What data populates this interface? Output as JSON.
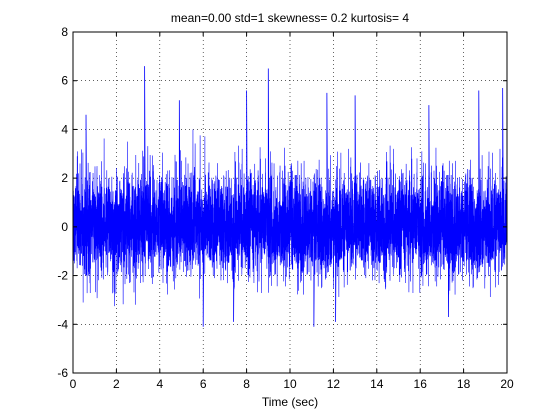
{
  "chart_data": {
    "type": "line",
    "title": "mean=0.00  std=1  skewness= 0.2  kurtosis=   4",
    "xlabel": "Time (sec)",
    "ylabel": "",
    "xlim": [
      0,
      20
    ],
    "ylim": [
      -6,
      8
    ],
    "xticks": [
      0,
      2,
      4,
      6,
      8,
      10,
      12,
      14,
      16,
      18,
      20
    ],
    "yticks": [
      -6,
      -4,
      -2,
      0,
      2,
      4,
      6,
      8
    ],
    "xtick_labels": [
      "0",
      "2",
      "4",
      "6",
      "8",
      "10",
      "12",
      "14",
      "16",
      "18",
      "20"
    ],
    "ytick_labels": [
      "-6",
      "-4",
      "-2",
      "0",
      "2",
      "4",
      "6",
      "8"
    ],
    "grid": true,
    "grid_style": "dotted",
    "series": [
      {
        "color": "#0000ff",
        "description": "dense noise signal, mean 0, std 1, skewness 0.2, kurtosis 4",
        "envelope": {
          "typical_upper": 3.5,
          "typical_lower": -2.9,
          "peak_points": [
            {
              "x": 0.6,
              "y": 4.6
            },
            {
              "x": 3.3,
              "y": 6.6
            },
            {
              "x": 4.9,
              "y": 5.2
            },
            {
              "x": 8.0,
              "y": 5.6
            },
            {
              "x": 9.0,
              "y": 6.5
            },
            {
              "x": 11.7,
              "y": 5.5
            },
            {
              "x": 13.0,
              "y": 5.4
            },
            {
              "x": 16.4,
              "y": 5.0
            },
            {
              "x": 18.7,
              "y": 5.6
            },
            {
              "x": 19.8,
              "y": 5.7
            }
          ],
          "trough_points": [
            {
              "x": 6.0,
              "y": -4.1
            },
            {
              "x": 7.4,
              "y": -3.9
            },
            {
              "x": 11.1,
              "y": -4.1
            },
            {
              "x": 12.1,
              "y": -3.9
            },
            {
              "x": 17.3,
              "y": -3.7
            }
          ]
        }
      }
    ]
  }
}
